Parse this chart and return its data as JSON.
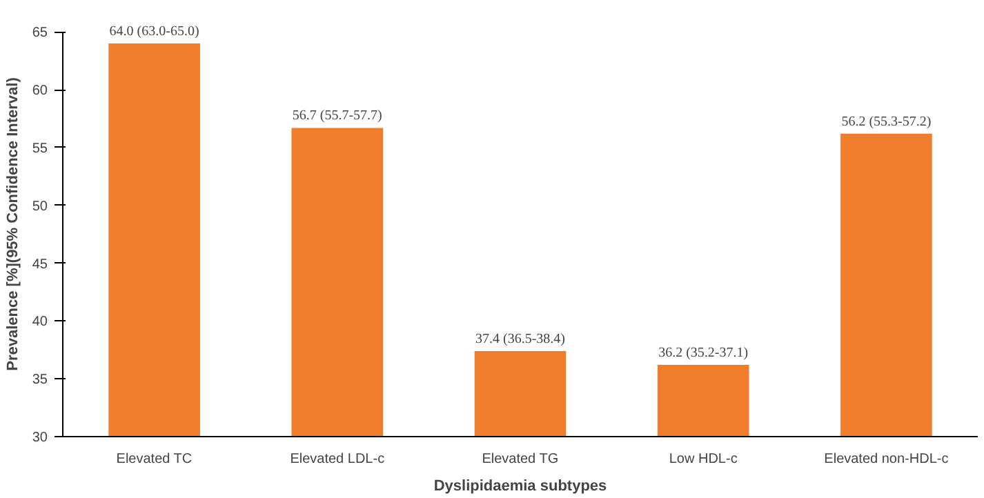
{
  "chart_data": {
    "type": "bar",
    "xlabel": "Dyslipidaemia subtypes",
    "ylabel": "Prevalence [%](95% Confidence Interval)",
    "categories": [
      "Elevated TC",
      "Elevated LDL-c",
      "Elevated TG",
      "Low HDL-c",
      "Elevated non-HDL-c"
    ],
    "values": [
      64.0,
      56.7,
      37.4,
      36.2,
      56.2
    ],
    "value_labels": [
      "64.0 (63.0-65.0)",
      "56.7 (55.7-57.7)",
      "37.4 (36.5-38.4)",
      "36.2 (35.2-37.1)",
      "56.2 (55.3-57.2)"
    ],
    "color": "#f07d2c",
    "ylim": [
      30,
      65
    ],
    "yticks": [
      30,
      35,
      40,
      45,
      50,
      55,
      60,
      65
    ],
    "grid": false
  }
}
